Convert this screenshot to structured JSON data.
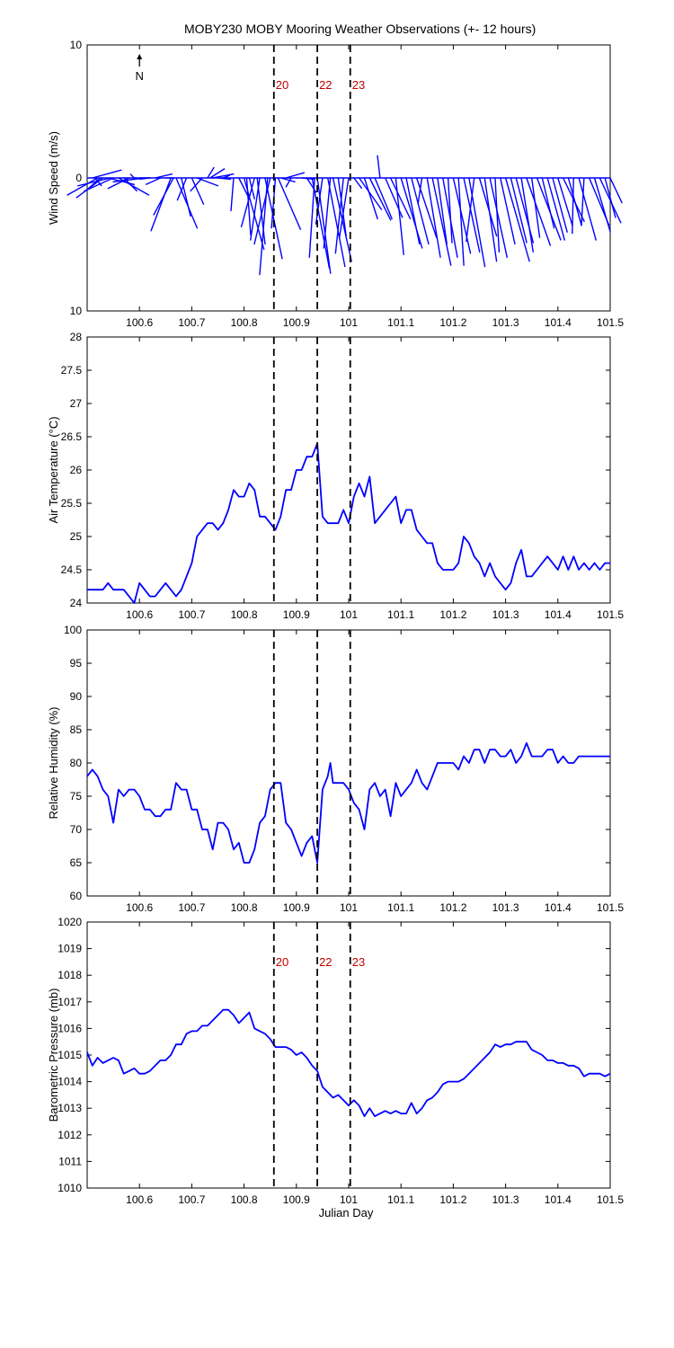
{
  "title": "MOBY230 MOBY Mooring Weather Observations (+- 12 hours)",
  "colors": {
    "series": "#0000ff",
    "marker_label": "#c00000",
    "axis": "#000000"
  },
  "x_axis": {
    "label": "Julian Day",
    "range": [
      100.5,
      101.5
    ],
    "ticks": [
      100.6,
      100.7,
      100.8,
      100.9,
      101,
      101.1,
      101.2,
      101.3,
      101.4,
      101.5
    ],
    "tick_labels": [
      "100.6",
      "100.7",
      "100.8",
      "100.9",
      "101",
      "101.1",
      "101.2",
      "101.3",
      "101.4",
      "101.5"
    ]
  },
  "markers": [
    {
      "label": "20",
      "x": 100.857
    },
    {
      "label": "22",
      "x": 100.94
    },
    {
      "label": "23",
      "x": 101.003
    }
  ],
  "north_label": "N",
  "chart_data": [
    {
      "type": "vector",
      "ylabel": "Wind Speed (m/s)",
      "ylim": [
        -10,
        10
      ],
      "y_ticks": [
        10,
        0,
        -10
      ],
      "y_tick_labels": [
        "10",
        "0",
        "10"
      ],
      "marker_labels_shown": true,
      "x": [
        100.51,
        100.515,
        100.52,
        100.525,
        100.53,
        100.54,
        100.545,
        100.55,
        100.56,
        100.57,
        100.58,
        100.59,
        100.6,
        100.61,
        100.62,
        100.63,
        100.64,
        100.65,
        100.66,
        100.665,
        100.67,
        100.68,
        100.69,
        100.7,
        100.71,
        100.72,
        100.73,
        100.735,
        100.74,
        100.75,
        100.76,
        100.77,
        100.78,
        100.79,
        100.8,
        100.805,
        100.81,
        100.82,
        100.825,
        100.83,
        100.84,
        100.845,
        100.85,
        100.86,
        100.865,
        100.87,
        100.88,
        100.89,
        100.9,
        100.91,
        100.92,
        100.93,
        100.935,
        100.94,
        100.95,
        100.96,
        100.965,
        100.97,
        100.98,
        100.99,
        101.0,
        101.01,
        101.02,
        101.03,
        101.04,
        101.05,
        101.06,
        101.07,
        101.08,
        101.09,
        101.1,
        101.11,
        101.12,
        101.13,
        101.14,
        101.15,
        101.16,
        101.17,
        101.18,
        101.19,
        101.2,
        101.21,
        101.22,
        101.23,
        101.24,
        101.25,
        101.26,
        101.27,
        101.28,
        101.29,
        101.3,
        101.31,
        101.32,
        101.33,
        101.34,
        101.35,
        101.36,
        101.37,
        101.38,
        101.39,
        101.4,
        101.41,
        101.42,
        101.43,
        101.44,
        101.45,
        101.46,
        101.47,
        101.48,
        101.49,
        101.5
      ],
      "u": [
        2.2,
        0.5,
        -2.3,
        -1.0,
        -2.0,
        2.0,
        -2.5,
        -2.2,
        2.3,
        1.0,
        -1.6,
        -0.3,
        0.8,
        -2.4,
        -0.8,
        1.3,
        -1.1,
        0.6,
        -1.5,
        -1.5,
        1.6,
        0.7,
        -0.7,
        0.9,
        1.6,
        -0.9,
        0.5,
        1.1,
        1.6,
        1.0,
        0.5,
        -0.3,
        -0.2,
        0.8,
        1.5,
        0.3,
        0.4,
        -1.0,
        0.6,
        -0.7,
        1.3,
        -0.6,
        -1.2,
        -0.3,
        1.7,
        1.1,
        1.4,
        -0.4,
        0.1,
        1.0,
        0.7,
        1.3,
        -0.4,
        1.0,
        -0.5,
        1.3,
        -0.5,
        1.4,
        0.6,
        -0.6,
        -0.7,
        0.6,
        1.7,
        1.0,
        1.6,
        1.3,
        -0.2,
        1.3,
        1.5,
        0.6,
        1.6,
        1.0,
        1.3,
        1.5,
        -0.3,
        1.0,
        1.4,
        0.7,
        1.1,
        0.3,
        1.3,
        0.4,
        1.2,
        1.2,
        -0.6,
        1.3,
        0.9,
        1.3,
        0.3,
        1.1,
        1.8,
        1.2,
        1.3,
        0.9,
        1.8,
        0.6,
        1.8,
        0.9,
        1.3,
        1.1,
        1.1,
        1.6,
        1.0,
        -0.1,
        1.3,
        -0.2,
        1.5,
        1.2,
        1.6,
        0.8,
        0.9
      ],
      "v": [
        0.6,
        -0.6,
        -1.3,
        -0.9,
        -1.5,
        -0.5,
        -0.6,
        -1.0,
        -1.3,
        -1.0,
        -0.8,
        0.3,
        0.0,
        -0.3,
        -0.1,
        0.3,
        -0.5,
        0.0,
        -4.0,
        -2.8,
        -3.8,
        -2.9,
        -1.7,
        -2.0,
        -0.6,
        -1.0,
        0.8,
        0.7,
        0.3,
        -0.1,
        0.2,
        0.0,
        -2.5,
        -1.6,
        -5.4,
        -4.3,
        -1.6,
        -3.7,
        -5.0,
        -4.7,
        -6.1,
        -7.3,
        -5.0,
        -3.8,
        -3.9,
        -0.3,
        0.4,
        -0.7,
        0.0,
        -0.1,
        -1.1,
        -6.8,
        -6.0,
        -7.2,
        -3.5,
        -6.7,
        -5.3,
        -6.3,
        -4.4,
        -5.7,
        -4.5,
        -0.8,
        -2.4,
        -3.1,
        -3.2,
        -3.1,
        1.7,
        -3.0,
        -3.1,
        -5.8,
        -5.3,
        -5.0,
        -5.0,
        -4.5,
        -2.0,
        -6.0,
        -6.6,
        -5.0,
        -6.0,
        -4.9,
        -5.7,
        -6.6,
        -5.6,
        -6.7,
        -4.8,
        -4.4,
        -6.3,
        -6.0,
        -5.6,
        -5.0,
        -6.3,
        -4.9,
        -4.9,
        -5.6,
        -5.1,
        -4.5,
        -4.7,
        -3.8,
        -4.7,
        -4.1,
        -3.6,
        -3.3,
        -3.6,
        -4.2,
        -4.7,
        -3.6,
        -3.6,
        -4.1,
        -3.4,
        -3.0,
        -1.9
      ]
    },
    {
      "type": "line",
      "ylabel": "Air Temperature (°C)",
      "ylim": [
        24,
        28
      ],
      "y_ticks": [
        24,
        24.5,
        25,
        25.5,
        26,
        26.5,
        27,
        27.5,
        28
      ],
      "y_tick_labels": [
        "24",
        "24.5",
        "25",
        "25.5",
        "26",
        "26.5",
        "27",
        "27.5",
        "28"
      ],
      "marker_labels_shown": false,
      "series": [
        {
          "x": [
            100.5,
            100.51,
            100.52,
            100.53,
            100.54,
            100.55,
            100.56,
            100.57,
            100.58,
            100.59,
            100.6,
            100.61,
            100.62,
            100.63,
            100.64,
            100.65,
            100.66,
            100.67,
            100.68,
            100.69,
            100.7,
            100.71,
            100.72,
            100.73,
            100.74,
            100.75,
            100.76,
            100.77,
            100.78,
            100.79,
            100.8,
            100.81,
            100.82,
            100.83,
            100.84,
            100.85,
            100.86,
            100.87,
            100.88,
            100.89,
            100.9,
            100.91,
            100.92,
            100.93,
            100.94,
            100.95,
            100.96,
            100.965,
            100.97,
            100.98,
            100.99,
            101.0,
            101.01,
            101.02,
            101.03,
            101.04,
            101.05,
            101.06,
            101.07,
            101.08,
            101.09,
            101.1,
            101.11,
            101.12,
            101.13,
            101.14,
            101.15,
            101.16,
            101.17,
            101.18,
            101.19,
            101.2,
            101.21,
            101.22,
            101.23,
            101.24,
            101.25,
            101.26,
            101.27,
            101.28,
            101.29,
            101.3,
            101.31,
            101.32,
            101.33,
            101.34,
            101.35,
            101.36,
            101.37,
            101.38,
            101.39,
            101.4,
            101.41,
            101.42,
            101.43,
            101.44,
            101.45,
            101.46,
            101.47,
            101.48,
            101.49,
            101.5
          ],
          "y": [
            24.2,
            24.2,
            24.2,
            24.2,
            24.3,
            24.2,
            24.2,
            24.2,
            24.1,
            24.0,
            24.3,
            24.2,
            24.1,
            24.1,
            24.2,
            24.3,
            24.2,
            24.1,
            24.2,
            24.4,
            24.6,
            25.0,
            25.1,
            25.2,
            25.2,
            25.1,
            25.2,
            25.4,
            25.7,
            25.6,
            25.6,
            25.8,
            25.7,
            25.3,
            25.3,
            25.2,
            25.1,
            25.3,
            25.7,
            25.7,
            26.0,
            26.0,
            26.2,
            26.2,
            26.4,
            25.3,
            25.2,
            25.2,
            25.2,
            25.2,
            25.4,
            25.2,
            25.6,
            25.8,
            25.6,
            25.9,
            25.2,
            25.3,
            25.4,
            25.5,
            25.6,
            25.2,
            25.4,
            25.4,
            25.1,
            25.0,
            24.9,
            24.9,
            24.6,
            24.5,
            24.5,
            24.5,
            24.6,
            25.0,
            24.9,
            24.7,
            24.6,
            24.4,
            24.6,
            24.4,
            24.3,
            24.2,
            24.3,
            24.6,
            24.8,
            24.4,
            24.4,
            24.5,
            24.6,
            24.7,
            24.6,
            24.5,
            24.7,
            24.5,
            24.7,
            24.5,
            24.6,
            24.5,
            24.6,
            24.5,
            24.6,
            24.6
          ],
          "color": "#0000ff"
        }
      ]
    },
    {
      "type": "line",
      "ylabel": "Relative Humidity (%)",
      "ylim": [
        60,
        100
      ],
      "y_ticks": [
        60,
        65,
        70,
        75,
        80,
        85,
        90,
        95,
        100
      ],
      "y_tick_labels": [
        "60",
        "65",
        "70",
        "75",
        "80",
        "85",
        "90",
        "95",
        "100"
      ],
      "marker_labels_shown": false,
      "series": [
        {
          "x": [
            100.5,
            100.51,
            100.52,
            100.53,
            100.54,
            100.55,
            100.56,
            100.57,
            100.58,
            100.59,
            100.6,
            100.61,
            100.62,
            100.63,
            100.64,
            100.65,
            100.66,
            100.67,
            100.68,
            100.69,
            100.7,
            100.71,
            100.72,
            100.73,
            100.74,
            100.75,
            100.76,
            100.77,
            100.78,
            100.79,
            100.8,
            100.81,
            100.82,
            100.83,
            100.84,
            100.85,
            100.86,
            100.87,
            100.88,
            100.89,
            100.9,
            100.91,
            100.92,
            100.93,
            100.94,
            100.95,
            100.96,
            100.965,
            100.97,
            100.98,
            100.99,
            101.0,
            101.01,
            101.02,
            101.03,
            101.04,
            101.05,
            101.06,
            101.07,
            101.08,
            101.09,
            101.1,
            101.11,
            101.12,
            101.13,
            101.14,
            101.15,
            101.16,
            101.17,
            101.18,
            101.19,
            101.2,
            101.21,
            101.22,
            101.23,
            101.24,
            101.25,
            101.26,
            101.27,
            101.28,
            101.29,
            101.3,
            101.31,
            101.32,
            101.33,
            101.34,
            101.35,
            101.36,
            101.37,
            101.38,
            101.39,
            101.4,
            101.41,
            101.42,
            101.43,
            101.44,
            101.45,
            101.46,
            101.47,
            101.48,
            101.49,
            101.5
          ],
          "y": [
            78,
            79,
            78,
            76,
            75,
            71,
            76,
            75,
            76,
            76,
            75,
            73,
            73,
            72,
            72,
            73,
            73,
            77,
            76,
            76,
            73,
            73,
            70,
            70,
            67,
            71,
            71,
            70,
            67,
            68,
            65,
            65,
            67,
            71,
            72,
            76,
            77,
            77,
            71,
            70,
            68,
            66,
            68,
            69,
            65,
            76,
            78,
            80,
            77,
            77,
            77,
            76,
            74,
            73,
            70,
            76,
            77,
            75,
            76,
            72,
            77,
            75,
            76,
            77,
            79,
            77,
            76,
            78,
            80,
            80,
            80,
            80,
            79,
            81,
            80,
            82,
            82,
            80,
            82,
            82,
            81,
            81,
            82,
            80,
            81,
            83,
            81,
            81,
            81,
            82,
            82,
            80,
            81,
            80,
            80,
            81,
            81,
            81,
            81,
            81,
            81,
            81
          ],
          "color": "#0000ff"
        }
      ]
    },
    {
      "type": "line",
      "ylabel": "Barometric Pressure (mb)",
      "ylim": [
        1010,
        1020
      ],
      "y_ticks": [
        1010,
        1011,
        1012,
        1013,
        1014,
        1015,
        1016,
        1017,
        1018,
        1019,
        1020
      ],
      "y_tick_labels": [
        "1010",
        "1011",
        "1012",
        "1013",
        "1014",
        "1015",
        "1016",
        "1017",
        "1018",
        "1019",
        "1020"
      ],
      "marker_labels_shown": true,
      "series": [
        {
          "x": [
            100.5,
            100.51,
            100.52,
            100.53,
            100.54,
            100.55,
            100.56,
            100.57,
            100.58,
            100.59,
            100.6,
            100.61,
            100.62,
            100.63,
            100.64,
            100.65,
            100.66,
            100.67,
            100.68,
            100.69,
            100.7,
            100.71,
            100.72,
            100.73,
            100.74,
            100.75,
            100.76,
            100.77,
            100.78,
            100.79,
            100.8,
            100.81,
            100.82,
            100.83,
            100.84,
            100.85,
            100.86,
            100.87,
            100.88,
            100.89,
            100.9,
            100.91,
            100.92,
            100.93,
            100.94,
            100.95,
            100.96,
            100.97,
            100.98,
            100.99,
            101.0,
            101.01,
            101.02,
            101.03,
            101.04,
            101.05,
            101.06,
            101.07,
            101.08,
            101.09,
            101.1,
            101.11,
            101.12,
            101.13,
            101.14,
            101.15,
            101.16,
            101.17,
            101.18,
            101.19,
            101.2,
            101.21,
            101.22,
            101.23,
            101.24,
            101.25,
            101.26,
            101.27,
            101.28,
            101.29,
            101.3,
            101.31,
            101.32,
            101.33,
            101.34,
            101.35,
            101.36,
            101.37,
            101.38,
            101.39,
            101.4,
            101.41,
            101.42,
            101.43,
            101.44,
            101.45,
            101.46,
            101.47,
            101.48,
            101.49,
            101.5
          ],
          "y": [
            1015.1,
            1014.6,
            1014.9,
            1014.7,
            1014.8,
            1014.9,
            1014.8,
            1014.3,
            1014.4,
            1014.5,
            1014.3,
            1014.3,
            1014.4,
            1014.6,
            1014.8,
            1014.8,
            1015.0,
            1015.4,
            1015.4,
            1015.8,
            1015.9,
            1015.9,
            1016.1,
            1016.1,
            1016.3,
            1016.5,
            1016.7,
            1016.7,
            1016.5,
            1016.2,
            1016.4,
            1016.6,
            1016.0,
            1015.9,
            1015.8,
            1015.6,
            1015.3,
            1015.3,
            1015.3,
            1015.2,
            1015.0,
            1015.1,
            1014.9,
            1014.6,
            1014.4,
            1013.8,
            1013.6,
            1013.4,
            1013.5,
            1013.3,
            1013.1,
            1013.3,
            1013.1,
            1012.7,
            1013.0,
            1012.7,
            1012.8,
            1012.9,
            1012.8,
            1012.9,
            1012.8,
            1012.8,
            1013.2,
            1012.8,
            1013.0,
            1013.3,
            1013.4,
            1013.6,
            1013.9,
            1014.0,
            1014.0,
            1014.0,
            1014.1,
            1014.3,
            1014.5,
            1014.7,
            1014.9,
            1015.1,
            1015.4,
            1015.3,
            1015.4,
            1015.4,
            1015.5,
            1015.5,
            1015.5,
            1015.2,
            1015.1,
            1015.0,
            1014.8,
            1014.8,
            1014.7,
            1014.7,
            1014.6,
            1014.6,
            1014.5,
            1014.2,
            1014.3,
            1014.3,
            1014.3,
            1014.2,
            1014.3
          ],
          "color": "#0000ff"
        }
      ]
    }
  ]
}
